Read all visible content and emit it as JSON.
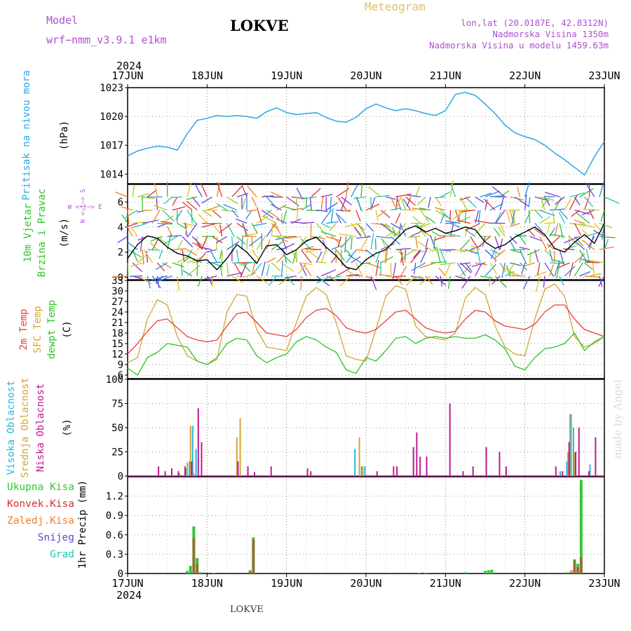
{
  "header": {
    "model_label": "Model",
    "model_name": "wrf−nmm_v3.9.1  e1km",
    "station": "LOKVE",
    "product": "Meteogram",
    "lonlat": "lon,lat (20.0187E, 42.8312N)",
    "elevation": "Nadmorska Visina 1350m",
    "model_elevation": "Nadmorska Visina u modelu 1459.63m",
    "footer_station": "LOKVE",
    "credit": "made by Angel"
  },
  "colors": {
    "pressure": "#29a8e0",
    "temp2m": "#e8403a",
    "sfc_temp": "#d4a437",
    "dewpoint": "#27c727",
    "cloud_high": "#2ab6d8",
    "cloud_mid": "#d4a437",
    "cloud_low": "#c01890",
    "precip_total": "#36c436",
    "precip_conv": "#d83030",
    "precip_frozen": "#f08030",
    "snow": "#5050d8",
    "graupel": "#20c8b8",
    "wind_speed": "#000000",
    "header_purple": "#b050d0",
    "header_gold": "#e0c070"
  },
  "time_axis": {
    "year": "2024",
    "ticks": [
      "17JUN",
      "18JUN",
      "19JUN",
      "20JUN",
      "21JUN",
      "22JUN",
      "23JUN"
    ],
    "range_hours": [
      0,
      144
    ]
  },
  "chart_data": [
    {
      "type": "line",
      "ylabel": "Pritisak na nivou mora",
      "unit": "(hPa)",
      "ylim": [
        1013,
        1023
      ],
      "yticks": [
        1014,
        1017,
        1020,
        1023
      ],
      "grid": true,
      "series": [
        {
          "name": "Pritisak na nivou mora",
          "x": [
            0,
            3,
            6,
            9,
            12,
            15,
            18,
            21,
            24,
            27,
            30,
            33,
            36,
            39,
            42,
            45,
            48,
            51,
            54,
            57,
            60,
            63,
            66,
            69,
            72,
            75,
            78,
            81,
            84,
            87,
            90,
            93,
            96,
            99,
            102,
            105,
            108,
            111,
            114,
            117,
            120,
            123,
            126,
            129,
            132,
            135,
            138,
            141,
            144
          ],
          "values": [
            1015.9,
            1016.4,
            1016.7,
            1016.9,
            1016.8,
            1016.5,
            1018.2,
            1019.6,
            1019.8,
            1020.1,
            1020.0,
            1020.1,
            1020.0,
            1019.8,
            1020.5,
            1020.9,
            1020.4,
            1020.2,
            1020.3,
            1020.4,
            1019.9,
            1019.5,
            1019.4,
            1019.9,
            1020.8,
            1021.3,
            1020.9,
            1020.6,
            1020.8,
            1020.6,
            1020.3,
            1020.1,
            1020.6,
            1022.3,
            1022.5,
            1022.2,
            1021.3,
            1020.3,
            1019.1,
            1018.3,
            1017.9,
            1017.6,
            1017.0,
            1016.2,
            1015.5,
            1014.7,
            1013.9,
            1015.8,
            1017.4
          ]
        }
      ]
    },
    {
      "type": "line",
      "ylabel_lines": [
        "10m Vjetar",
        "Brzina i Pravac"
      ],
      "unit": "(m/s)",
      "compass": "W <−|−> E",
      "compass_v": "N <−|−> S",
      "ylim": [
        -0.2,
        7.4
      ],
      "yticks": [
        0,
        2,
        4,
        6
      ],
      "grid": true,
      "series": [
        {
          "name": "10m Vjetar Brzina",
          "x": [
            0,
            3,
            6,
            9,
            12,
            15,
            18,
            21,
            24,
            27,
            30,
            33,
            36,
            39,
            42,
            45,
            48,
            51,
            54,
            57,
            60,
            63,
            66,
            69,
            72,
            75,
            78,
            81,
            84,
            87,
            90,
            93,
            96,
            99,
            102,
            105,
            108,
            111,
            114,
            117,
            120,
            123,
            126,
            129,
            132,
            135,
            138,
            141,
            144
          ],
          "values": [
            1.5,
            2.6,
            3.3,
            3.1,
            2.4,
            1.9,
            1.7,
            1.3,
            1.4,
            0.6,
            1.5,
            2.6,
            2.0,
            1.1,
            2.5,
            2.6,
            1.8,
            2.2,
            2.9,
            3.2,
            2.4,
            1.7,
            0.8,
            0.6,
            1.4,
            1.9,
            2.2,
            3.0,
            3.8,
            4.1,
            3.6,
            3.9,
            3.5,
            3.7,
            4.0,
            3.8,
            2.8,
            2.3,
            2.6,
            3.2,
            3.6,
            4.0,
            3.4,
            2.3,
            2.0,
            2.8,
            3.4,
            2.7,
            4.3
          ]
        }
      ]
    },
    {
      "type": "line",
      "ylabel_lines": [
        "2m Temp",
        "SFC Temp",
        "dewpt Temp"
      ],
      "unit": "(C)",
      "ylim": [
        5,
        33
      ],
      "yticks": [
        6,
        9,
        12,
        15,
        18,
        21,
        24,
        27,
        30,
        33
      ],
      "grid": true,
      "series": [
        {
          "name": "2m Temp",
          "x": [
            0,
            3,
            6,
            9,
            12,
            15,
            18,
            21,
            24,
            27,
            30,
            33,
            36,
            39,
            42,
            45,
            48,
            51,
            54,
            57,
            60,
            63,
            66,
            69,
            72,
            75,
            78,
            81,
            84,
            87,
            90,
            93,
            96,
            99,
            102,
            105,
            108,
            111,
            114,
            117,
            120,
            123,
            126,
            129,
            132,
            135,
            138,
            141,
            144
          ],
          "values": [
            12.0,
            15.0,
            18.5,
            21.5,
            22.0,
            19.5,
            17.0,
            16.0,
            15.5,
            16.0,
            20.0,
            23.5,
            24.0,
            21.0,
            18.0,
            17.5,
            17.0,
            19.0,
            22.5,
            24.5,
            25.0,
            23.0,
            19.5,
            18.5,
            18.0,
            19.0,
            21.5,
            24.0,
            24.5,
            22.0,
            19.5,
            18.5,
            18.0,
            18.5,
            22.0,
            24.5,
            24.0,
            21.5,
            20.0,
            19.5,
            19.0,
            20.5,
            24.0,
            26.0,
            26.0,
            22.0,
            19.0,
            18.0,
            17.0
          ]
        },
        {
          "name": "SFC Temp",
          "x": [
            0,
            3,
            6,
            9,
            12,
            15,
            18,
            21,
            24,
            27,
            30,
            33,
            36,
            39,
            42,
            45,
            48,
            51,
            54,
            57,
            60,
            63,
            66,
            69,
            72,
            75,
            78,
            81,
            84,
            87,
            90,
            93,
            96,
            99,
            102,
            105,
            108,
            111,
            114,
            117,
            120,
            123,
            126,
            129,
            132,
            135,
            138,
            141,
            144
          ],
          "values": [
            9.5,
            11.0,
            22.0,
            27.5,
            26.0,
            17.0,
            11.5,
            10.0,
            9.0,
            10.5,
            24.0,
            29.0,
            28.5,
            19.0,
            14.0,
            13.5,
            13.0,
            21.0,
            28.5,
            31.0,
            29.0,
            21.0,
            11.5,
            10.5,
            10.0,
            19.0,
            28.5,
            31.5,
            30.5,
            20.0,
            17.0,
            16.5,
            16.0,
            18.0,
            28.0,
            31.0,
            29.0,
            20.0,
            14.0,
            12.0,
            11.5,
            22.0,
            30.5,
            32.0,
            28.5,
            17.0,
            14.0,
            15.0,
            17.0
          ]
        },
        {
          "name": "dewpt Temp",
          "x": [
            0,
            3,
            6,
            9,
            12,
            15,
            18,
            21,
            24,
            27,
            30,
            33,
            36,
            39,
            42,
            45,
            48,
            51,
            54,
            57,
            60,
            63,
            66,
            69,
            72,
            75,
            78,
            81,
            84,
            87,
            90,
            93,
            96,
            99,
            102,
            105,
            108,
            111,
            114,
            117,
            120,
            123,
            126,
            129,
            132,
            135,
            138,
            141,
            144
          ],
          "values": [
            8.0,
            6.0,
            11.0,
            12.5,
            15.0,
            14.5,
            14.0,
            10.0,
            9.0,
            11.0,
            15.0,
            16.5,
            16.0,
            11.5,
            9.5,
            11.0,
            12.0,
            15.5,
            17.0,
            16.0,
            14.0,
            12.5,
            7.5,
            6.5,
            11.0,
            10.0,
            13.0,
            16.5,
            17.0,
            15.0,
            16.5,
            17.0,
            16.5,
            17.0,
            16.5,
            16.5,
            17.5,
            16.0,
            13.5,
            8.5,
            7.5,
            11.0,
            13.5,
            14.0,
            15.0,
            18.0,
            13.0,
            15.5,
            17.0
          ]
        }
      ]
    },
    {
      "type": "bar",
      "ylabel_lines": [
        "Visoka Oblacnost",
        "Srednja Oblacnost",
        "Niska Oblacnost"
      ],
      "unit": "(%)",
      "ylim": [
        0,
        100
      ],
      "yticks": [
        0,
        25,
        50,
        75,
        100
      ],
      "grid": true,
      "series": [
        {
          "name": "Visoka Oblacnost",
          "x": [
            16,
            18,
            19,
            20,
            21,
            69,
            71,
            72,
            131,
            133,
            134,
            135,
            140
          ],
          "values": [
            3,
            8,
            15,
            52,
            28,
            28,
            10,
            10,
            5,
            15,
            64,
            50,
            12
          ]
        },
        {
          "name": "Srednja Oblacnost",
          "x": [
            18,
            19,
            20,
            33,
            34,
            70,
            71,
            133,
            134,
            135
          ],
          "values": [
            14,
            52,
            3,
            40,
            60,
            40,
            10,
            25,
            64,
            25
          ]
        },
        {
          "name": "Niska Oblacnost",
          "x": [
            9,
            11,
            13,
            15,
            17,
            19,
            21,
            22,
            33,
            36,
            38,
            43,
            54,
            55,
            75,
            80,
            81,
            86,
            87,
            88,
            90,
            97,
            101,
            104,
            108,
            112,
            114,
            129,
            131,
            133,
            135,
            136,
            139,
            141
          ],
          "values": [
            10,
            5,
            8,
            5,
            10,
            15,
            70,
            35,
            15,
            10,
            4,
            10,
            8,
            5,
            5,
            10,
            10,
            30,
            45,
            20,
            20,
            75,
            5,
            10,
            30,
            25,
            10,
            10,
            5,
            35,
            25,
            50,
            5,
            40
          ]
        }
      ]
    },
    {
      "type": "bar",
      "ylabel": "1hr Precip (mm)",
      "legend": [
        "Ukupna Kisa",
        "Konvek.Kisa",
        "Zaledj.Kisa",
        "Snijeg",
        "Grad"
      ],
      "ylim": [
        0,
        1.5
      ],
      "yticks": [
        0,
        0.3,
        0.6,
        0.9,
        1.2
      ],
      "ytick_labels": [
        "0",
        "0.3",
        "0.6",
        "0.9",
        "1.2"
      ],
      "grid": true,
      "series": [
        {
          "name": "Ukupna Kisa",
          "x": [
            18,
            19,
            20,
            21,
            22,
            26,
            37,
            38,
            88,
            90,
            102,
            108,
            109,
            110,
            133,
            135,
            136,
            137
          ],
          "values": [
            0.04,
            0.12,
            0.73,
            0.24,
            0.02,
            0.01,
            0.05,
            0.56,
            0.01,
            0.01,
            0.02,
            0.04,
            0.05,
            0.06,
            0.02,
            0.22,
            0.15,
            1.45
          ]
        },
        {
          "name": "Konvek.Kisa",
          "x": [
            20,
            21,
            37,
            38,
            134,
            135,
            136,
            137
          ],
          "values": [
            0.55,
            0.15,
            0.03,
            0.52,
            0.05,
            0.2,
            0.1,
            0.25
          ]
        }
      ]
    }
  ]
}
